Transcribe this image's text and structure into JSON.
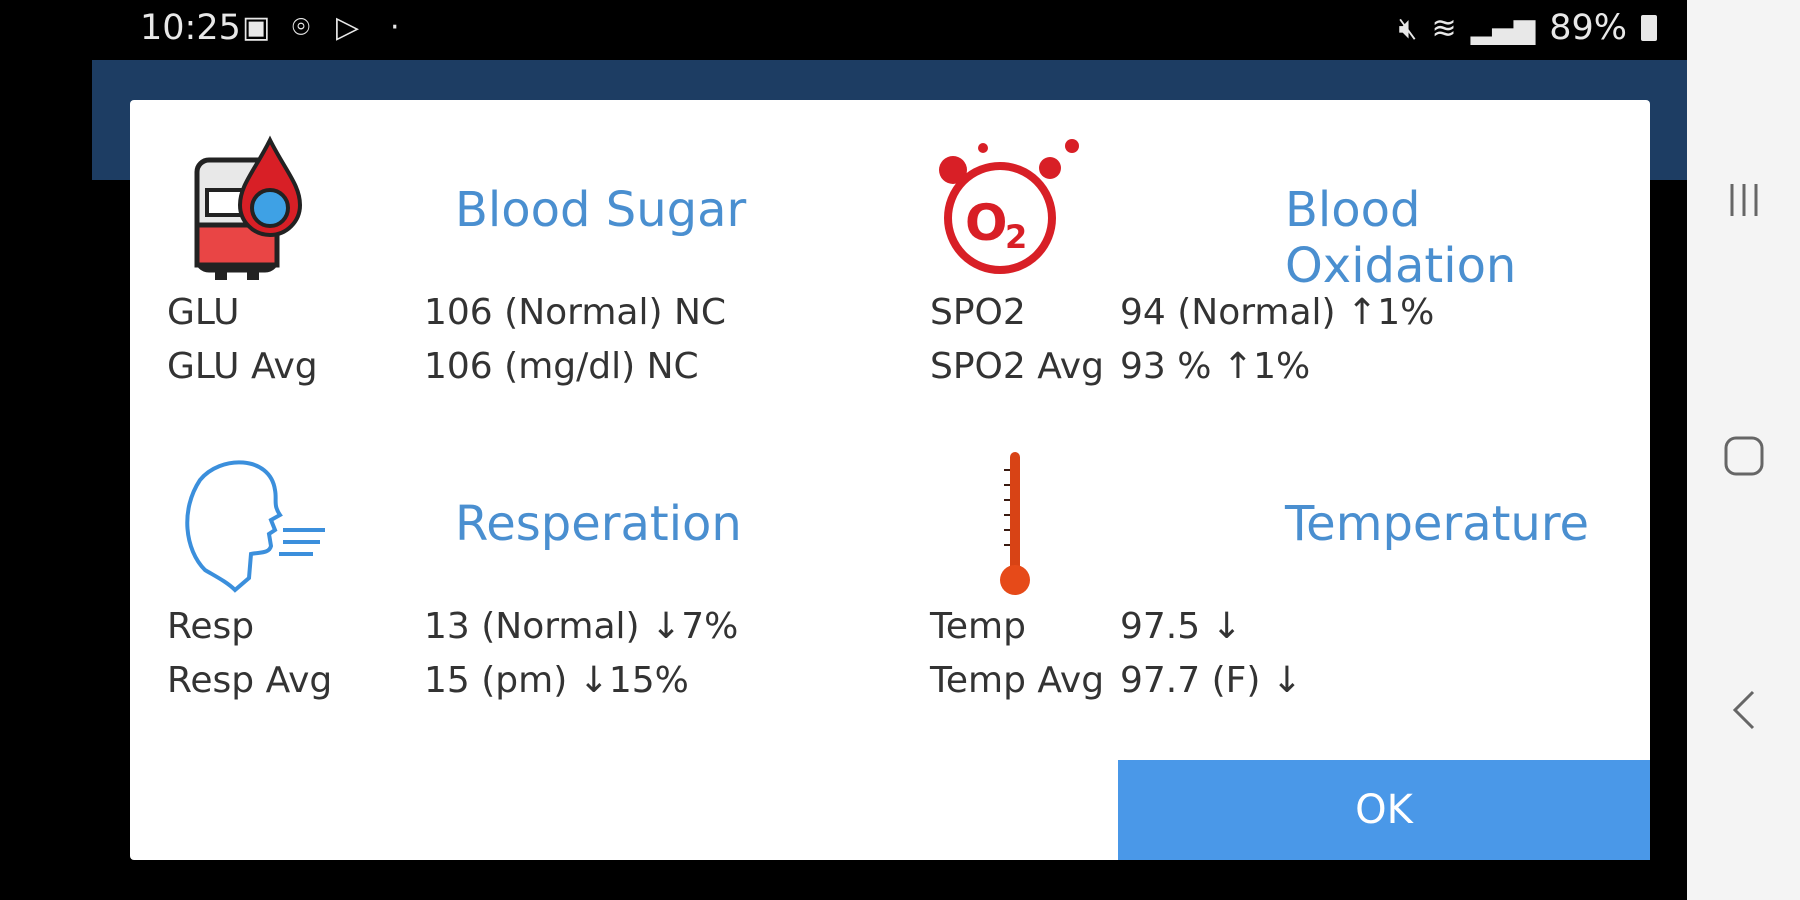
{
  "status_bar": {
    "time": "10:25",
    "battery": "89%",
    "icons": [
      "image-icon",
      "location-icon",
      "play-store-icon",
      "mute-icon",
      "wifi-icon",
      "signal-icon",
      "battery-icon"
    ]
  },
  "dialog": {
    "blood_sugar": {
      "title": "Blood Sugar",
      "icon": "blood-bag-icon",
      "rows": [
        {
          "label": "GLU",
          "value": "106 (Normal)  NC"
        },
        {
          "label": "GLU Avg",
          "value": "106 (mg/dl)  NC"
        }
      ]
    },
    "blood_oxidation": {
      "title": "Blood Oxidation",
      "icon": "oxygen-o2-icon",
      "rows": [
        {
          "label": "SPO2",
          "value": "94 (Normal)   ↑1%"
        },
        {
          "label": "SPO2 Avg",
          "value": "93 %   ↑1%"
        }
      ]
    },
    "respiration": {
      "title": "Resperation",
      "icon": "breathing-head-icon",
      "rows": [
        {
          "label": "Resp",
          "value": "13 (Normal)   ↓7%"
        },
        {
          "label": "Resp Avg",
          "value": "15 (pm)   ↓15%"
        }
      ]
    },
    "temperature": {
      "title": "Temperature",
      "icon": "thermometer-icon",
      "rows": [
        {
          "label": "Temp",
          "value": "97.5   ↓"
        },
        {
          "label": "Temp Avg",
          "value": "97.7 (F)   ↓"
        }
      ]
    },
    "ok_label": "OK"
  },
  "nav_bar": {
    "icons": [
      "recent-apps-icon",
      "home-icon",
      "back-icon"
    ]
  },
  "colors": {
    "accent": "#4a8fd0",
    "ok_button": "#4a98e8",
    "app_bar": "#1d3d63",
    "icon_red": "#d81f26"
  }
}
